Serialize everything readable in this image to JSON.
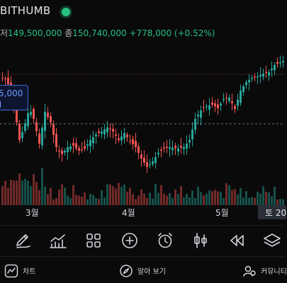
{
  "header": {
    "exchange": "BITHUMB",
    "low_label": "저",
    "low_value": "149,500,000",
    "close_label": "종",
    "close_value": "150,740,000",
    "change": "+778,000 (+0.52%)"
  },
  "price_tag": {
    "value": "5,000"
  },
  "x_axis": {
    "labels": [
      "3월",
      "4월",
      "5월"
    ],
    "crosshair_label": "토 20"
  },
  "toolbar": {
    "items": [
      "draw",
      "indicators",
      "layouts",
      "add",
      "alert",
      "chart-type",
      "replay",
      "layers"
    ]
  },
  "bottom_nav": {
    "chart": "차트",
    "explore": "알아 보기",
    "community": "커뮤니티"
  },
  "colors": {
    "up": "#26a69a",
    "down": "#ef5350",
    "accent": "#3d6bdf",
    "live": "#26c281"
  }
}
